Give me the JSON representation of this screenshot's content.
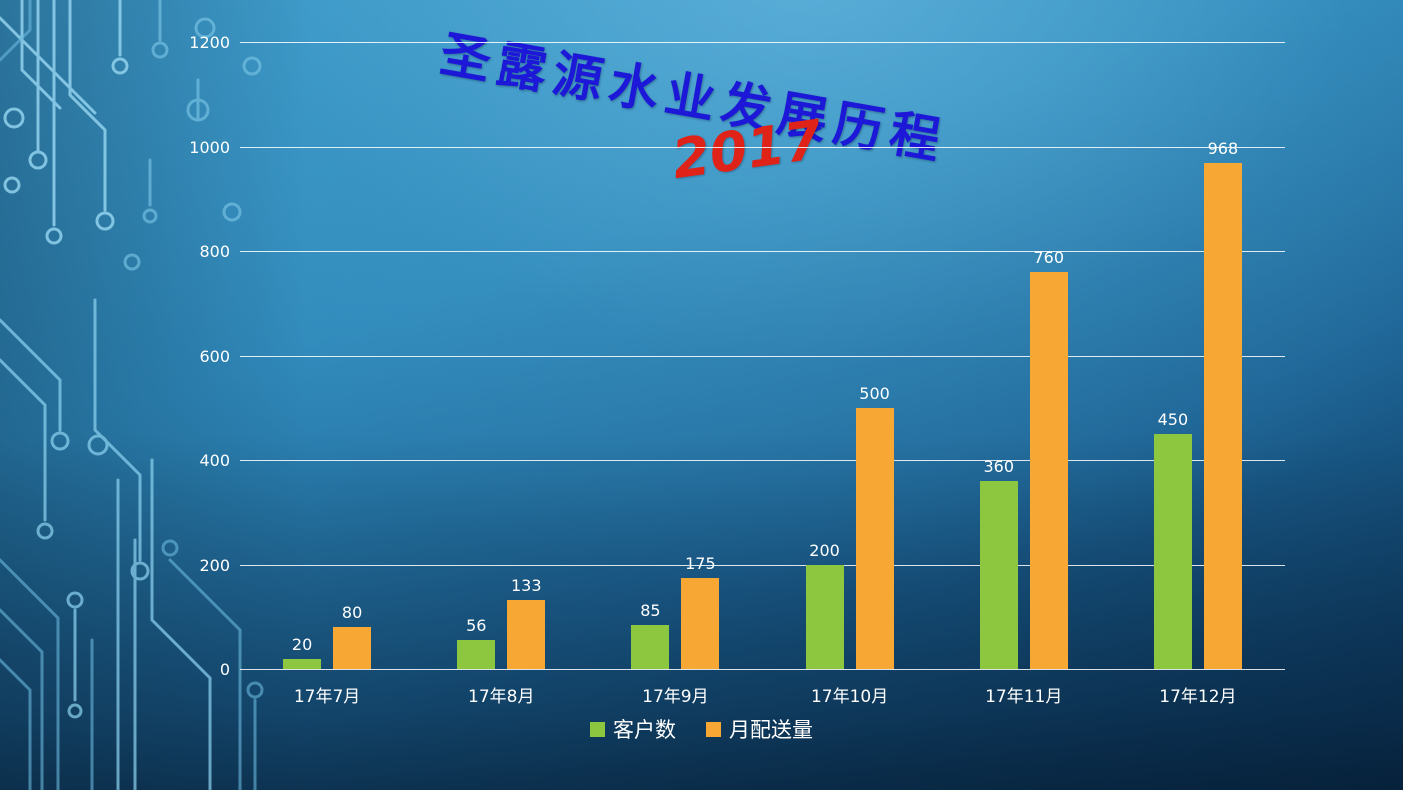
{
  "title": {
    "main": "圣露源水业发展历程",
    "year": "2017"
  },
  "colors": {
    "series_green": "#8dc63f",
    "series_orange": "#f7a733",
    "title_blue": "#1d18d8",
    "year_red": "#e02318",
    "text_white": "#ffffff"
  },
  "chart_data": {
    "type": "bar",
    "title": "圣露源水业发展历程 2017",
    "categories": [
      "17年7月",
      "17年8月",
      "17年9月",
      "17年10月",
      "17年11月",
      "17年12月"
    ],
    "series": [
      {
        "name": "客户数",
        "color": "#8dc63f",
        "values": [
          20,
          56,
          85,
          200,
          360,
          450
        ]
      },
      {
        "name": "月配送量",
        "color": "#f7a733",
        "values": [
          80,
          133,
          175,
          500,
          760,
          968
        ]
      }
    ],
    "ylim": [
      0,
      1200
    ],
    "yticks": [
      0,
      200,
      400,
      600,
      800,
      1000,
      1200
    ],
    "grid": true,
    "legend_position": "bottom",
    "data_labels": true
  }
}
